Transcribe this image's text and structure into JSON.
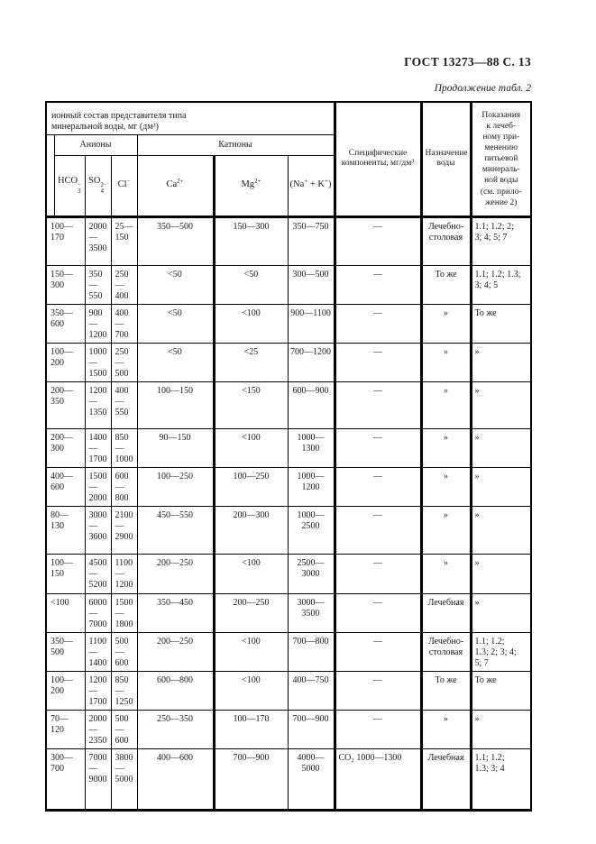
{
  "page": {
    "header_right": "ГОСТ 13273—88 С. 13",
    "continuation_note": "Продолжение табл. 2"
  },
  "table": {
    "header": {
      "ionic_composition": "ионный состав представителя типа\nминеральной воды, мг (дм³)",
      "anions_group": "Анионы",
      "cations_group": "Катионы",
      "col_hco3": {
        "base": "HCO",
        "sub": "3",
        "sup": "−"
      },
      "col_so4": {
        "base": "SO",
        "sub": "4",
        "sup": "2−"
      },
      "col_cl": {
        "base": "Cl",
        "sup": "−"
      },
      "col_ca": {
        "base": "Ca",
        "sup": "2+"
      },
      "col_mg": {
        "base": "Mg",
        "sup": "2+"
      },
      "col_na_k": {
        "pre": "(Na",
        "sup1": "+",
        "mid": " + K",
        "sup2": "+",
        "post": ")"
      },
      "col_specific": "Специфические\nкомпоненты, мг/дм³",
      "col_purpose": "Назначение\nводы",
      "col_indications": "Показания\nк лечеб-\nному при-\nменению\nпитьевой\nминераль-\nной воды\n(см. прило-\nжение 2)"
    },
    "rows": [
      {
        "hco3": "100—\n170",
        "so4": "2000—\n3500",
        "cl": "25—\n150",
        "ca": "350—500",
        "mg": "150—300",
        "na_k": "350—750",
        "specific": "—",
        "purpose": "Лечебно-\nстоловая",
        "indications": "1.1;  1.2;  2;\n3; 4; 5; 7"
      },
      {
        "hco3": "150—\n300",
        "so4": "350—\n550",
        "cl": "250—\n400",
        "ca": "<50",
        "mg": "<50",
        "na_k": "300—500",
        "specific": "—",
        "purpose": "То же",
        "indications": "1.1; 1.2; 1.3;\n3; 4; 5"
      },
      {
        "hco3": "350—\n600",
        "so4": "900—\n1200",
        "cl": "400—\n700",
        "ca": "<50",
        "mg": "<100",
        "na_k": "900—1100",
        "specific": "—",
        "purpose": "»",
        "indications": "То же"
      },
      {
        "hco3": "100—\n200",
        "so4": "1000—\n1500",
        "cl": "250—\n500",
        "ca": "<50",
        "mg": "<25",
        "na_k": "700—1200",
        "specific": "—",
        "purpose": "»",
        "indications": "»"
      },
      {
        "hco3": "200—\n350",
        "so4": "1200—\n1350",
        "cl": "400—\n550",
        "ca": "100—150",
        "mg": "<150",
        "na_k": "600—900",
        "specific": "—",
        "purpose": "»",
        "indications": "»"
      },
      {
        "hco3": "200—\n300",
        "so4": "1400—\n1700",
        "cl": "850—\n1000",
        "ca": "90—150",
        "mg": "<100",
        "na_k": "1000—1300",
        "specific": "—",
        "purpose": "»",
        "indications": "»"
      },
      {
        "hco3": "400—\n600",
        "so4": "1500—\n2000",
        "cl": "600—\n800",
        "ca": "100—250",
        "mg": "100—250",
        "na_k": "1000—1200",
        "specific": "—",
        "purpose": "»",
        "indications": "»"
      },
      {
        "hco3": "80—\n130",
        "so4": "3000—\n3600",
        "cl": "2100—\n2900",
        "ca": "450—550",
        "mg": "200—300",
        "na_k": "1000—2500",
        "specific": "—",
        "purpose": "»",
        "indications": "»"
      },
      {
        "hco3": "100—\n150",
        "so4": "4500—\n5200",
        "cl": "1100—\n1200",
        "ca": "200—250",
        "mg": "<100",
        "na_k": "2500—3000",
        "specific": "—",
        "purpose": "»",
        "indications": "»"
      },
      {
        "hco3": "<100",
        "so4": "6000—\n7000",
        "cl": "1500—\n1800",
        "ca": "350—450",
        "mg": "200—250",
        "na_k": "3000—3500",
        "specific": "—",
        "purpose": "Лечебная",
        "indications": "»"
      },
      {
        "hco3": "350—\n500",
        "so4": "1100—\n1400",
        "cl": "500—\n600",
        "ca": "200—250",
        "mg": "<100",
        "na_k": "700—800",
        "specific": "—",
        "purpose": "Лечебно-\nстоловая",
        "indications": "1.1; 1.2;\n1.3; 2; 3; 4;\n5; 7"
      },
      {
        "hco3": "100—\n200",
        "so4": "1200—\n1700",
        "cl": "850—\n1250",
        "ca": "600—800",
        "mg": "<100",
        "na_k": "400—750",
        "specific": "—",
        "purpose": "То же",
        "indications": "То же"
      },
      {
        "hco3": "70—\n120",
        "so4": "2000—\n2350",
        "cl": "500—\n600",
        "ca": "250—350",
        "mg": "100—170",
        "na_k": "700—900",
        "specific": "—",
        "purpose": "»",
        "indications": "»"
      },
      {
        "hco3": "300—\n700",
        "so4": "7000—\n9000",
        "cl": "3800—\n5000",
        "ca": "400—600",
        "mg": "700—900",
        "na_k": "4000—5000",
        "specific": "CO₂ 1000—1300",
        "purpose": "Лечебная",
        "indications": "1.1; 1.2;\n1.3; 3; 4"
      }
    ]
  }
}
